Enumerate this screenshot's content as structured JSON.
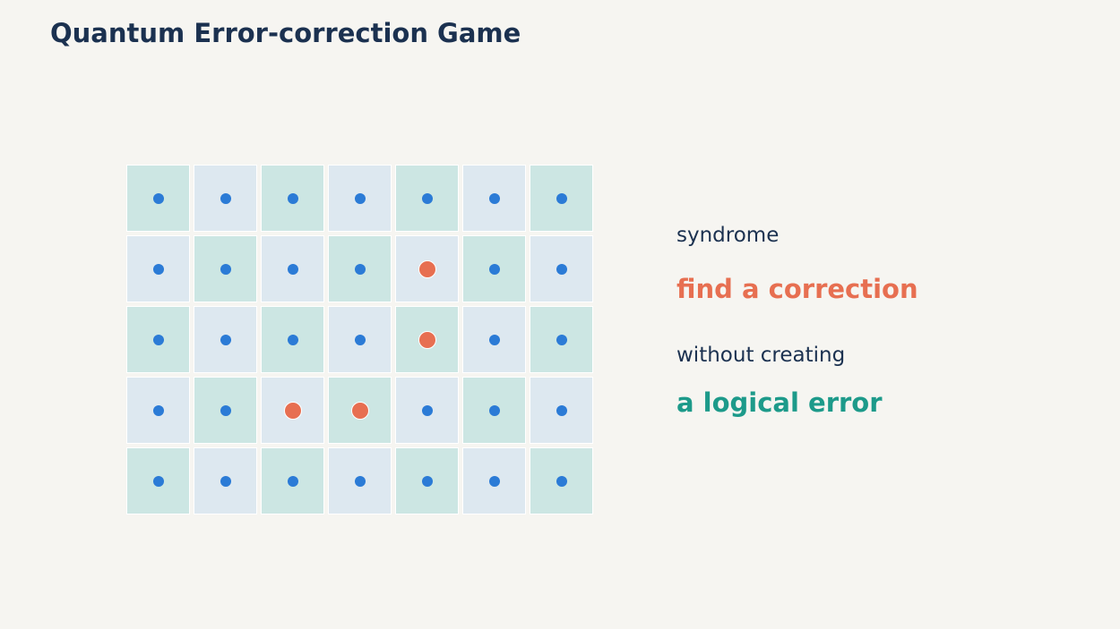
{
  "title": "Quantum Error-correction Game",
  "grid": {
    "rows": 5,
    "cols": 7,
    "errors": [
      [
        1,
        4
      ],
      [
        2,
        4
      ],
      [
        3,
        2
      ],
      [
        3,
        3
      ]
    ]
  },
  "side": {
    "syndrome": "syndrome",
    "find": "find a correction",
    "without": "without creating",
    "logical": "a logical error"
  },
  "colors": {
    "background": "#f6f5f1",
    "title": "#1b3150",
    "tile_teal": "#cce6e3",
    "tile_blue": "#dde8f0",
    "qubit": "#2b7bd6",
    "error": "#e76f51",
    "logical": "#1d9a8a"
  }
}
